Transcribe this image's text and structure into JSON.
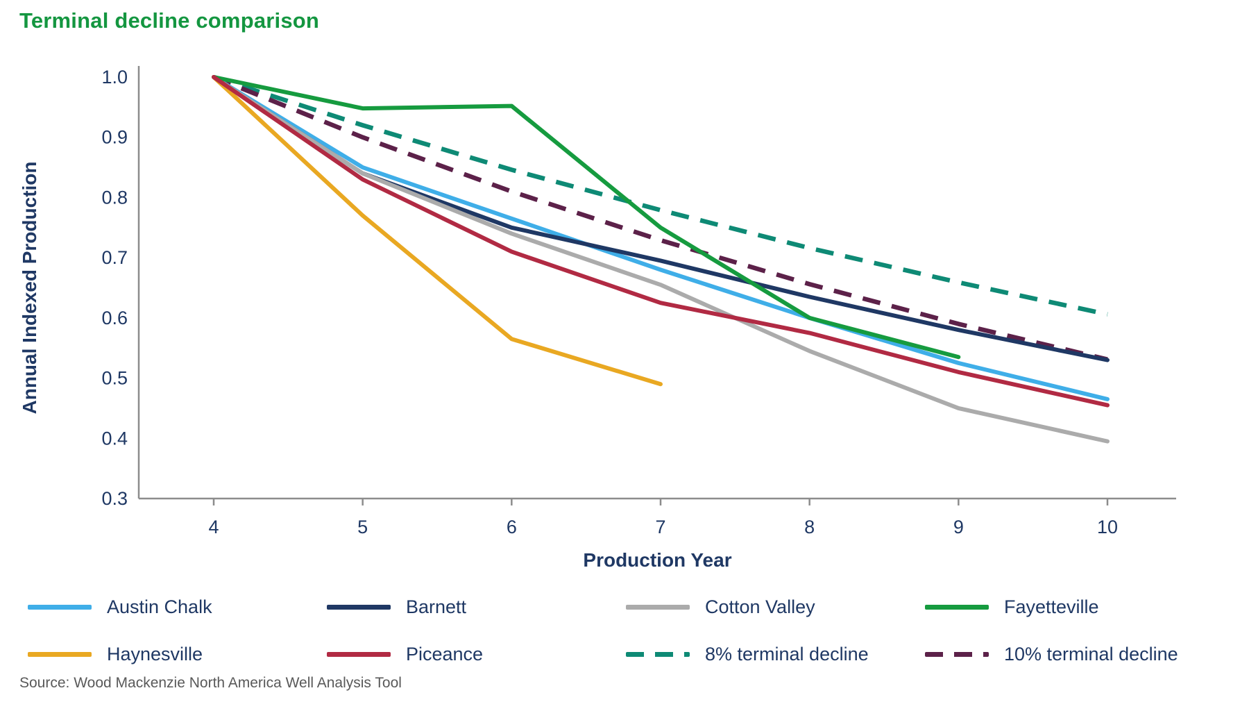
{
  "page": {
    "title": "Terminal decline comparison",
    "source": "Source: Wood Mackenzie North America Well Analysis Tool"
  },
  "colors": {
    "title_green": "#149640",
    "axis_text_navy": "#1F3864",
    "axis_line_gray": "#8C8C8C",
    "source_gray": "#595959"
  },
  "chart_data": {
    "type": "line",
    "title": "Terminal decline comparison",
    "xlabel": "Production Year",
    "ylabel": "Annual Indexed Production",
    "x": [
      4,
      5,
      6,
      7,
      8,
      9,
      10
    ],
    "xticks": [
      "4",
      "5",
      "6",
      "7",
      "8",
      "9",
      "10"
    ],
    "yticks": [
      "1.0",
      "0.9",
      "0.8",
      "0.7",
      "0.6",
      "0.5",
      "0.4",
      "0.3"
    ],
    "ylim": [
      0.3,
      1.0
    ],
    "xlim": [
      4,
      10
    ],
    "grid": false,
    "legend_position": "bottom",
    "series": [
      {
        "id": "austin-chalk",
        "name": "Austin Chalk",
        "color": "#3FAEE8",
        "dash": false,
        "values": [
          1.0,
          0.85,
          0.765,
          0.68,
          0.6,
          0.525,
          0.465
        ]
      },
      {
        "id": "barnett",
        "name": "Barnett",
        "color": "#1F3864",
        "dash": false,
        "values": [
          1.0,
          0.84,
          0.75,
          0.695,
          0.635,
          0.58,
          0.53
        ]
      },
      {
        "id": "cotton-valley",
        "name": "Cotton Valley",
        "color": "#ABABAB",
        "dash": false,
        "values": [
          1.0,
          0.84,
          0.74,
          0.655,
          0.545,
          0.45,
          0.395
        ]
      },
      {
        "id": "fayetteville",
        "name": "Fayetteville",
        "color": "#169B3F",
        "dash": false,
        "values": [
          1.0,
          0.948,
          0.952,
          0.75,
          0.6,
          0.535,
          null
        ]
      },
      {
        "id": "haynesville",
        "name": "Haynesville",
        "color": "#E9A822",
        "dash": false,
        "values": [
          1.0,
          0.77,
          0.565,
          0.49,
          null,
          null,
          null
        ]
      },
      {
        "id": "piceance",
        "name": "Piceance",
        "color": "#B12A43",
        "dash": false,
        "values": [
          1.0,
          0.83,
          0.71,
          0.625,
          0.575,
          0.51,
          0.455
        ]
      },
      {
        "id": "terminal-8pct",
        "name": "8% terminal decline",
        "color": "#0E8A75",
        "dash": true,
        "values": [
          1.0,
          0.92,
          0.846,
          0.779,
          0.716,
          0.659,
          0.606
        ]
      },
      {
        "id": "terminal-10pct",
        "name": "10% terminal decline",
        "color": "#5C2149",
        "dash": true,
        "values": [
          1.0,
          0.9,
          0.81,
          0.729,
          0.656,
          0.59,
          0.531
        ]
      }
    ]
  }
}
